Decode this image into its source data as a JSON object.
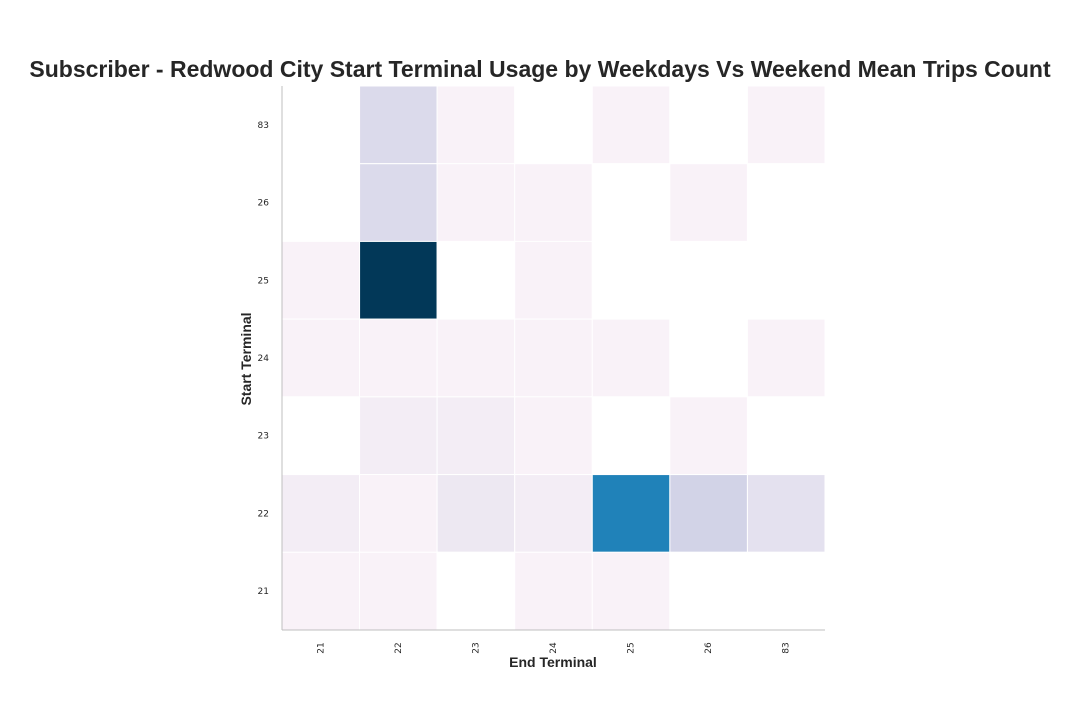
{
  "chart_data": {
    "type": "heatmap",
    "title": "Subscriber - Redwood City Start Terminal Usage by Weekdays Vs Weekend Mean Trips Count",
    "xlabel": "End Terminal",
    "ylabel": "Start Terminal",
    "x_categories": [
      "21",
      "22",
      "23",
      "24",
      "25",
      "26",
      "83"
    ],
    "y_categories": [
      "83",
      "26",
      "25",
      "24",
      "23",
      "22",
      "21"
    ],
    "values": [
      [
        0,
        5,
        1,
        0,
        1,
        0,
        1
      ],
      [
        0,
        5,
        1,
        1,
        0,
        1,
        0
      ],
      [
        1,
        25,
        0,
        1,
        0,
        0,
        0
      ],
      [
        1,
        1,
        1,
        1,
        1,
        0,
        1
      ],
      [
        0,
        2,
        2,
        1,
        0,
        1,
        0
      ],
      [
        2,
        1,
        3,
        2,
        17,
        6,
        4
      ],
      [
        1,
        1,
        0,
        1,
        1,
        0,
        0
      ]
    ],
    "zero_color": "#ffffff",
    "colormap": "PuBu",
    "grid": false
  }
}
